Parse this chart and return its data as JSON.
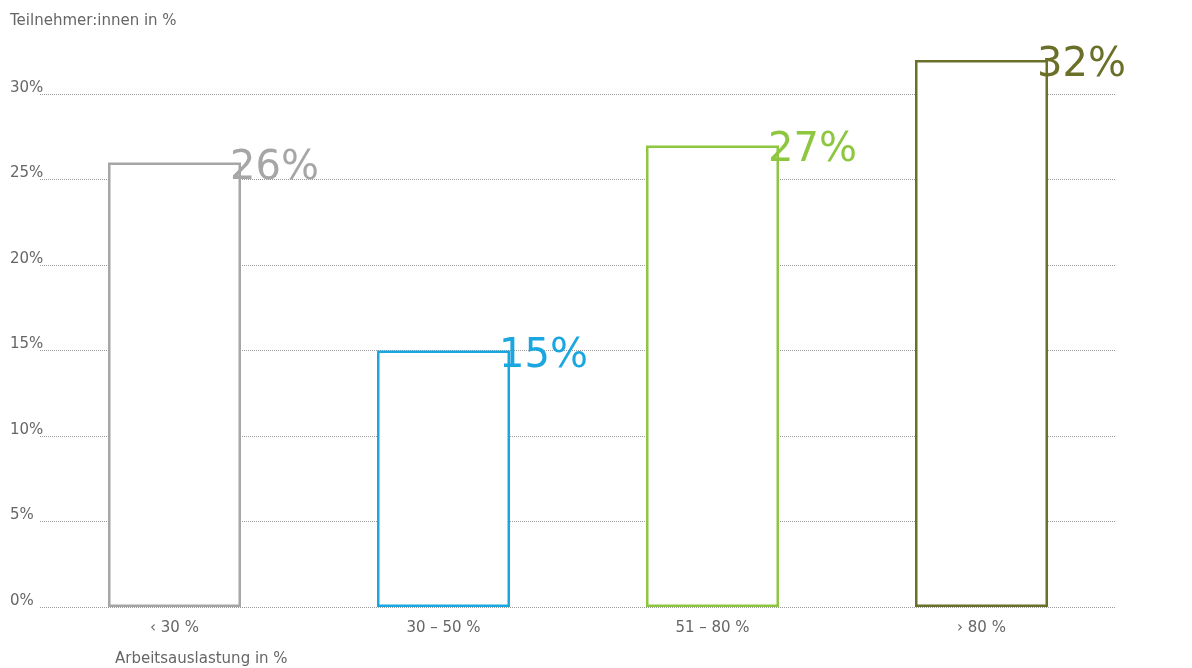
{
  "chart_data": {
    "type": "bar",
    "ylabel": "Teilnehmer:innen in %",
    "xlabel": "Arbeitsauslastung in %",
    "categories": [
      "‹ 30 %",
      "30 – 50 %",
      "51 – 80 %",
      "› 80 %"
    ],
    "values": [
      26,
      15,
      27,
      32
    ],
    "colors": [
      "#a6a6a6",
      "#1aa7e0",
      "#8dc63f",
      "#6b7028"
    ],
    "value_labels": [
      "26%",
      "15%",
      "27%",
      "32%"
    ],
    "ylim": [
      0,
      32
    ],
    "yticks": [
      {
        "value": 0,
        "label": "0%"
      },
      {
        "value": 5,
        "label": "5%"
      },
      {
        "value": 10,
        "label": "10%"
      },
      {
        "value": 15,
        "label": "15%"
      },
      {
        "value": 20,
        "label": "20%"
      },
      {
        "value": 25,
        "label": "25%"
      },
      {
        "value": 30,
        "label": "30%"
      }
    ],
    "grid": "y"
  }
}
